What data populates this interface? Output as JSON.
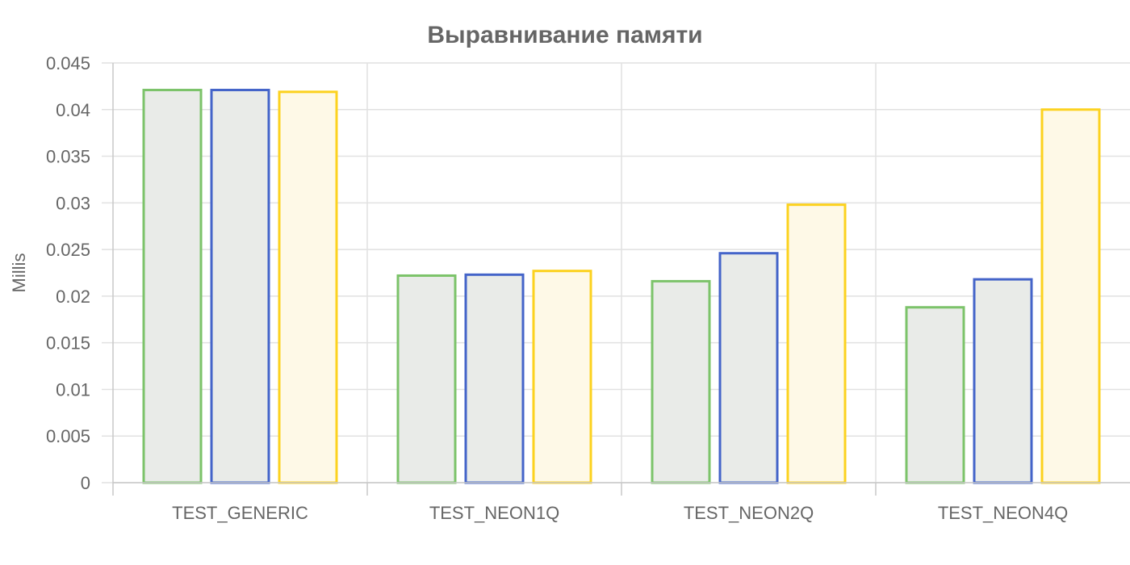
{
  "chart_data": {
    "type": "bar",
    "title": "Выравнивание памяти",
    "xlabel": "",
    "ylabel": "Millis",
    "ylim": [
      0,
      0.045
    ],
    "yticks": [
      "0",
      "0.005",
      "0.01",
      "0.015",
      "0.02",
      "0.025",
      "0.03",
      "0.035",
      "0.04",
      "0.045"
    ],
    "grid": true,
    "legend": "none",
    "categories": [
      "TEST_GENERIC",
      "TEST_NEON1Q",
      "TEST_NEON2Q",
      "TEST_NEON4Q"
    ],
    "series": [
      {
        "values": [
          0.0421,
          0.0222,
          0.0216,
          0.0188
        ],
        "border_color": "#7cc36a",
        "fill_color": "#e9ebe8"
      },
      {
        "values": [
          0.0421,
          0.0223,
          0.0246,
          0.0218
        ],
        "border_color": "#4464c9",
        "fill_color": "#e9ebe8"
      },
      {
        "values": [
          0.0419,
          0.0227,
          0.0298,
          0.04
        ],
        "border_color": "#fcd21f",
        "fill_color": "#fef9e7"
      }
    ]
  }
}
